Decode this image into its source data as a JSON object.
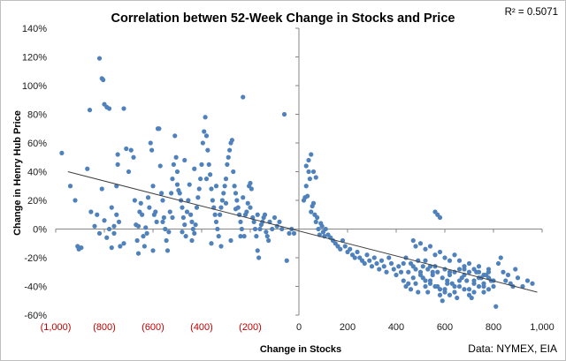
{
  "chart_data": {
    "type": "scatter",
    "title": "Correlation betwen 52-Week Change in Stocks and Price",
    "xlabel": "Change in Stocks",
    "ylabel": "Change in Henry Hub Price",
    "r_squared": "R² = 0.5071",
    "source": "Data: NYMEX, EIA",
    "xlim": [
      -1000,
      1000
    ],
    "ylim": [
      -60,
      140
    ],
    "x_ticks": [
      {
        "value": -1000,
        "label": "(1,000)"
      },
      {
        "value": -800,
        "label": "(800)"
      },
      {
        "value": -600,
        "label": "(600)"
      },
      {
        "value": -400,
        "label": "(400)"
      },
      {
        "value": -200,
        "label": "(200)"
      },
      {
        "value": 0,
        "label": "0"
      },
      {
        "value": 200,
        "label": "200"
      },
      {
        "value": 400,
        "label": "400"
      },
      {
        "value": 600,
        "label": "600"
      },
      {
        "value": 800,
        "label": "800"
      },
      {
        "value": 1000,
        "label": "1,000"
      }
    ],
    "y_ticks": [
      {
        "value": 140,
        "label": "140%"
      },
      {
        "value": 120,
        "label": "120%"
      },
      {
        "value": 100,
        "label": "100%"
      },
      {
        "value": 80,
        "label": "80%"
      },
      {
        "value": 60,
        "label": "60%"
      },
      {
        "value": 40,
        "label": "40%"
      },
      {
        "value": 20,
        "label": "20%"
      },
      {
        "value": 0,
        "label": "0%"
      },
      {
        "value": -20,
        "label": "-20%"
      },
      {
        "value": -40,
        "label": "-40%"
      },
      {
        "value": -60,
        "label": "-60%"
      }
    ],
    "negative_tick_color": "#c00000",
    "point_color": "#4f81bd",
    "trend_color": "#404040",
    "trendline": {
      "x": [
        -950,
        980
      ],
      "y": [
        40,
        -44
      ]
    },
    "grid": false,
    "points": [
      [
        -975,
        53
      ],
      [
        -940,
        30
      ],
      [
        -920,
        20
      ],
      [
        -910,
        -12
      ],
      [
        -905,
        -14
      ],
      [
        -895,
        -13
      ],
      [
        -870,
        42
      ],
      [
        -860,
        83
      ],
      [
        -855,
        12
      ],
      [
        -840,
        2
      ],
      [
        -830,
        10
      ],
      [
        -820,
        -3
      ],
      [
        -810,
        28
      ],
      [
        -800,
        6
      ],
      [
        -790,
        -6
      ],
      [
        -780,
        0
      ],
      [
        -770,
        15
      ],
      [
        -760,
        -3
      ],
      [
        -750,
        30
      ],
      [
        -745,
        52
      ],
      [
        -740,
        5
      ],
      [
        -735,
        -12
      ],
      [
        -820,
        119
      ],
      [
        -810,
        105
      ],
      [
        -805,
        104
      ],
      [
        -800,
        87
      ],
      [
        -790,
        85
      ],
      [
        -780,
        84
      ],
      [
        -770,
        -13
      ],
      [
        -760,
        2
      ],
      [
        -750,
        10
      ],
      [
        -745,
        45
      ],
      [
        -720,
        84
      ],
      [
        -710,
        56
      ],
      [
        -700,
        40
      ],
      [
        -690,
        55
      ],
      [
        -680,
        50
      ],
      [
        -675,
        20
      ],
      [
        -670,
        3
      ],
      [
        -665,
        -8
      ],
      [
        -660,
        2
      ],
      [
        -655,
        12
      ],
      [
        -650,
        18
      ],
      [
        -645,
        10
      ],
      [
        -640,
        -5
      ],
      [
        -635,
        -12
      ],
      [
        -630,
        1
      ],
      [
        -625,
        -3
      ],
      [
        -620,
        22
      ],
      [
        -615,
        15
      ],
      [
        -610,
        60
      ],
      [
        -605,
        55
      ],
      [
        -600,
        30
      ],
      [
        -595,
        10
      ],
      [
        -590,
        12
      ],
      [
        -585,
        5
      ],
      [
        -580,
        70
      ],
      [
        -575,
        70
      ],
      [
        -570,
        44
      ],
      [
        -565,
        25
      ],
      [
        -560,
        20
      ],
      [
        -555,
        8
      ],
      [
        -550,
        0
      ],
      [
        -545,
        -8
      ],
      [
        -540,
        -15
      ],
      [
        -535,
        -2
      ],
      [
        -530,
        12
      ],
      [
        -525,
        25
      ],
      [
        -520,
        35
      ],
      [
        -515,
        45
      ],
      [
        -510,
        65
      ],
      [
        -505,
        50
      ],
      [
        -500,
        40
      ],
      [
        -495,
        27
      ],
      [
        -490,
        25
      ],
      [
        -485,
        20
      ],
      [
        -480,
        15
      ],
      [
        -475,
        8
      ],
      [
        -470,
        3
      ],
      [
        -465,
        -5
      ],
      [
        -460,
        12
      ],
      [
        -455,
        20
      ],
      [
        -450,
        31
      ],
      [
        -445,
        10
      ],
      [
        -440,
        5
      ],
      [
        -435,
        0
      ],
      [
        -430,
        -3
      ],
      [
        -425,
        3
      ],
      [
        -420,
        15
      ],
      [
        -415,
        22
      ],
      [
        -410,
        28
      ],
      [
        -405,
        35
      ],
      [
        -400,
        45
      ],
      [
        -395,
        60
      ],
      [
        -390,
        68
      ],
      [
        -385,
        78
      ],
      [
        -380,
        65
      ],
      [
        -375,
        55
      ],
      [
        -370,
        45
      ],
      [
        -365,
        38
      ],
      [
        -360,
        28
      ],
      [
        -355,
        20
      ],
      [
        -350,
        15
      ],
      [
        -345,
        10
      ],
      [
        -340,
        5
      ],
      [
        -335,
        0
      ],
      [
        -330,
        -5
      ],
      [
        -325,
        10
      ],
      [
        -320,
        15
      ],
      [
        -315,
        20
      ],
      [
        -310,
        25
      ],
      [
        -305,
        30
      ],
      [
        -300,
        35
      ],
      [
        -295,
        45
      ],
      [
        -290,
        50
      ],
      [
        -285,
        55
      ],
      [
        -280,
        60
      ],
      [
        -275,
        62
      ],
      [
        -270,
        40
      ],
      [
        -265,
        30
      ],
      [
        -260,
        25
      ],
      [
        -255,
        20
      ],
      [
        -250,
        15
      ],
      [
        -245,
        10
      ],
      [
        -240,
        5
      ],
      [
        -235,
        0
      ],
      [
        -230,
        92
      ],
      [
        -225,
        -5
      ],
      [
        -220,
        10
      ],
      [
        -215,
        12
      ],
      [
        -210,
        18
      ],
      [
        -205,
        30
      ],
      [
        -200,
        32
      ],
      [
        -195,
        28
      ],
      [
        -190,
        8
      ],
      [
        -185,
        5
      ],
      [
        -180,
        0
      ],
      [
        -175,
        -5
      ],
      [
        -170,
        -15
      ],
      [
        -165,
        -20
      ],
      [
        -160,
        0
      ],
      [
        -155,
        3
      ],
      [
        -150,
        5
      ],
      [
        -145,
        8
      ],
      [
        -140,
        10
      ],
      [
        -135,
        -2
      ],
      [
        -130,
        -5
      ],
      [
        -125,
        -8
      ],
      [
        -120,
        5
      ],
      [
        -110,
        0
      ],
      [
        -100,
        8
      ],
      [
        -90,
        2
      ],
      [
        -80,
        5
      ],
      [
        -70,
        0
      ],
      [
        -60,
        80
      ],
      [
        -50,
        -22
      ],
      [
        -40,
        -3
      ],
      [
        -30,
        0
      ],
      [
        -20,
        -3
      ],
      [
        -500,
        31
      ],
      [
        -470,
        48
      ],
      [
        -430,
        42
      ],
      [
        -380,
        35
      ],
      [
        -340,
        30
      ],
      [
        -300,
        18
      ],
      [
        -260,
        14
      ],
      [
        -230,
        22
      ],
      [
        -200,
        15
      ],
      [
        -170,
        10
      ],
      [
        -360,
        -10
      ],
      [
        -320,
        -12
      ],
      [
        -280,
        -8
      ],
      [
        -240,
        -5
      ],
      [
        -600,
        -15
      ],
      [
        -660,
        -17
      ],
      [
        -720,
        -10
      ],
      [
        -560,
        5
      ],
      [
        -520,
        8
      ],
      [
        -480,
        -2
      ],
      [
        -440,
        -8
      ],
      [
        20,
        20
      ],
      [
        25,
        22
      ],
      [
        30,
        30
      ],
      [
        35,
        23
      ],
      [
        40,
        40
      ],
      [
        45,
        35
      ],
      [
        50,
        12
      ],
      [
        55,
        16
      ],
      [
        60,
        18
      ],
      [
        65,
        10
      ],
      [
        70,
        5
      ],
      [
        75,
        8
      ],
      [
        80,
        0
      ],
      [
        85,
        -4
      ],
      [
        90,
        4
      ],
      [
        95,
        2
      ],
      [
        100,
        -2
      ],
      [
        105,
        -5
      ],
      [
        110,
        0
      ],
      [
        120,
        -4
      ],
      [
        130,
        -6
      ],
      [
        140,
        -8
      ],
      [
        150,
        -10
      ],
      [
        160,
        -12
      ],
      [
        170,
        -14
      ],
      [
        180,
        -8
      ],
      [
        190,
        -12
      ],
      [
        200,
        -16
      ],
      [
        210,
        -14
      ],
      [
        220,
        -18
      ],
      [
        230,
        -20
      ],
      [
        240,
        -16
      ],
      [
        250,
        -20
      ],
      [
        260,
        -22
      ],
      [
        270,
        -24
      ],
      [
        280,
        -18
      ],
      [
        290,
        -22
      ],
      [
        300,
        -26
      ],
      [
        310,
        -20
      ],
      [
        320,
        -24
      ],
      [
        330,
        -28
      ],
      [
        340,
        -22
      ],
      [
        350,
        -26
      ],
      [
        360,
        -30
      ],
      [
        370,
        -20
      ],
      [
        380,
        -24
      ],
      [
        390,
        -28
      ],
      [
        400,
        -32
      ],
      [
        410,
        -26
      ],
      [
        420,
        -30
      ],
      [
        430,
        -36
      ],
      [
        440,
        -40
      ],
      [
        450,
        -38
      ],
      [
        460,
        -42
      ],
      [
        470,
        -34
      ],
      [
        480,
        -38
      ],
      [
        490,
        -44
      ],
      [
        500,
        -30
      ],
      [
        510,
        -34
      ],
      [
        520,
        -40
      ],
      [
        530,
        -44
      ],
      [
        540,
        -36
      ],
      [
        550,
        -30
      ],
      [
        560,
        -26
      ],
      [
        570,
        -40
      ],
      [
        580,
        -46
      ],
      [
        590,
        -50
      ],
      [
        600,
        -42
      ],
      [
        610,
        -36
      ],
      [
        620,
        -30
      ],
      [
        630,
        -38
      ],
      [
        640,
        -44
      ],
      [
        650,
        -48
      ],
      [
        660,
        -40
      ],
      [
        670,
        -34
      ],
      [
        680,
        -28
      ],
      [
        690,
        -36
      ],
      [
        700,
        -42
      ],
      [
        710,
        -48
      ],
      [
        720,
        -38
      ],
      [
        730,
        -30
      ],
      [
        740,
        -26
      ],
      [
        750,
        -34
      ],
      [
        760,
        -40
      ],
      [
        770,
        -32
      ],
      [
        780,
        -28
      ],
      [
        790,
        -36
      ],
      [
        800,
        -40
      ],
      [
        810,
        -54
      ],
      [
        820,
        -24
      ],
      [
        830,
        -20
      ],
      [
        840,
        -30
      ],
      [
        850,
        -36
      ],
      [
        860,
        -32
      ],
      [
        870,
        -38
      ],
      [
        880,
        -40
      ],
      [
        890,
        -28
      ],
      [
        900,
        -34
      ],
      [
        920,
        -40
      ],
      [
        940,
        -36
      ],
      [
        960,
        -38
      ],
      [
        470,
        -8
      ],
      [
        480,
        -12
      ],
      [
        500,
        -10
      ],
      [
        520,
        -14
      ],
      [
        540,
        -12
      ],
      [
        560,
        -18
      ],
      [
        580,
        -16
      ],
      [
        600,
        -20
      ],
      [
        620,
        -22
      ],
      [
        640,
        -18
      ],
      [
        660,
        -22
      ],
      [
        680,
        -26
      ],
      [
        700,
        -24
      ],
      [
        720,
        -28
      ],
      [
        740,
        -30
      ],
      [
        760,
        -32
      ],
      [
        780,
        -34
      ],
      [
        800,
        -36
      ],
      [
        560,
        12
      ],
      [
        570,
        10
      ],
      [
        580,
        8
      ],
      [
        440,
        -20
      ],
      [
        460,
        -24
      ],
      [
        480,
        -28
      ],
      [
        500,
        -32
      ],
      [
        520,
        -36
      ],
      [
        540,
        -38
      ],
      [
        560,
        -40
      ],
      [
        580,
        -42
      ],
      [
        600,
        -44
      ],
      [
        620,
        -46
      ],
      [
        640,
        -40
      ],
      [
        660,
        -36
      ],
      [
        680,
        -42
      ],
      [
        700,
        -46
      ],
      [
        720,
        -44
      ],
      [
        740,
        -40
      ],
      [
        760,
        -44
      ],
      [
        780,
        -42
      ],
      [
        520,
        -22
      ],
      [
        540,
        -26
      ],
      [
        600,
        -28
      ],
      [
        620,
        -32
      ],
      [
        640,
        -30
      ],
      [
        660,
        -28
      ],
      [
        680,
        -32
      ],
      [
        700,
        -30
      ],
      [
        720,
        -36
      ],
      [
        740,
        -34
      ],
      [
        760,
        -38
      ],
      [
        780,
        -30
      ],
      [
        430,
        -24
      ],
      [
        450,
        -30
      ],
      [
        470,
        -26
      ],
      [
        490,
        -22
      ],
      [
        510,
        -26
      ],
      [
        530,
        -28
      ],
      [
        550,
        -32
      ],
      [
        570,
        -30
      ],
      [
        590,
        -34
      ],
      [
        610,
        -38
      ],
      [
        60,
        40
      ],
      [
        70,
        36
      ],
      [
        40,
        48
      ],
      [
        50,
        52
      ],
      [
        30,
        44
      ]
    ]
  }
}
